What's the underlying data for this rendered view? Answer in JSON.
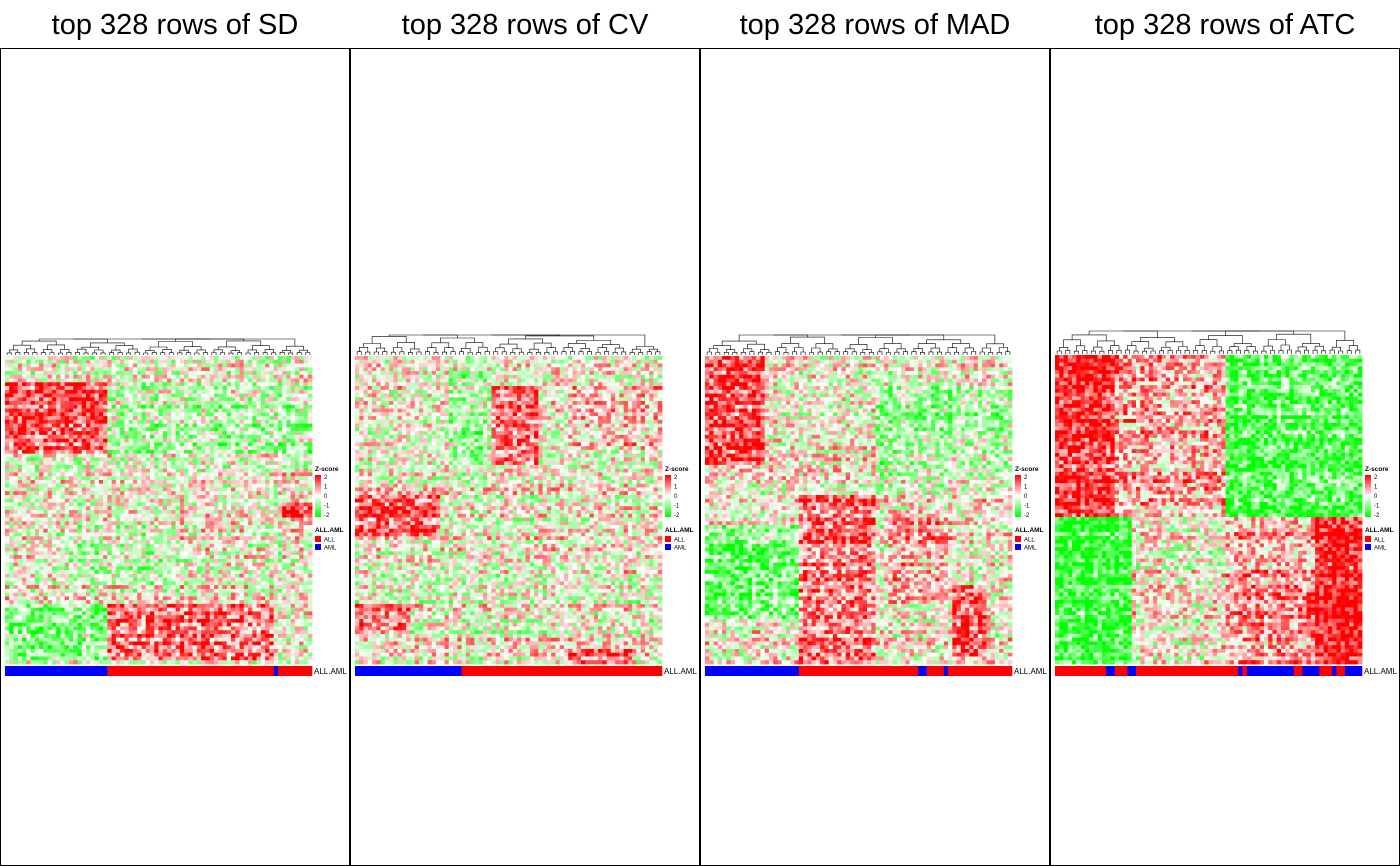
{
  "chart_data": [
    {
      "type": "heatmap",
      "title": "top 328 rows of SD",
      "annotation_track_label": "ALL.AML",
      "legend": {
        "zscore_title": "Z-score",
        "zscore_ticks": [
          "2",
          "1",
          "0",
          "-1",
          "-2"
        ],
        "zscore_colors": [
          "#ff0000",
          "#ffffff",
          "#00ff00"
        ],
        "group_title": "ALL.AML",
        "groups": [
          {
            "label": "ALL",
            "color": "#ff0000"
          },
          {
            "label": "AML",
            "color": "#0000ff"
          }
        ]
      },
      "columns": 72,
      "rows": 328,
      "annotation_segments": [
        {
          "group": "AML",
          "count": 24
        },
        {
          "group": "ALL",
          "count": 39
        },
        {
          "group": "AML",
          "count": 1
        },
        {
          "group": "ALL",
          "count": 8
        }
      ]
    },
    {
      "type": "heatmap",
      "title": "top 328 rows of CV",
      "annotation_track_label": "ALL.AML",
      "legend": {
        "zscore_title": "Z-score",
        "zscore_ticks": [
          "2",
          "1",
          "0",
          "-1",
          "-2"
        ],
        "zscore_colors": [
          "#ff0000",
          "#ffffff",
          "#00ff00"
        ],
        "group_title": "ALL.AML",
        "groups": [
          {
            "label": "ALL",
            "color": "#ff0000"
          },
          {
            "label": "AML",
            "color": "#0000ff"
          }
        ]
      },
      "columns": 72,
      "rows": 328,
      "annotation_segments": [
        {
          "group": "AML",
          "count": 25
        },
        {
          "group": "ALL",
          "count": 47
        }
      ]
    },
    {
      "type": "heatmap",
      "title": "top 328 rows of MAD",
      "annotation_track_label": "ALL.AML",
      "legend": {
        "zscore_title": "Z-score",
        "zscore_ticks": [
          "2",
          "1",
          "0",
          "-1",
          "-2"
        ],
        "zscore_colors": [
          "#ff0000",
          "#ffffff",
          "#00ff00"
        ],
        "group_title": "ALL.AML",
        "groups": [
          {
            "label": "ALL",
            "color": "#ff0000"
          },
          {
            "label": "AML",
            "color": "#0000ff"
          }
        ]
      },
      "columns": 72,
      "rows": 328,
      "annotation_segments": [
        {
          "group": "AML",
          "count": 22
        },
        {
          "group": "ALL",
          "count": 28
        },
        {
          "group": "AML",
          "count": 2
        },
        {
          "group": "ALL",
          "count": 4
        },
        {
          "group": "AML",
          "count": 1
        },
        {
          "group": "ALL",
          "count": 15
        }
      ]
    },
    {
      "type": "heatmap",
      "title": "top 328 rows of ATC",
      "annotation_track_label": "ALL.AML",
      "legend": {
        "zscore_title": "Z-score",
        "zscore_ticks": [
          "2",
          "1",
          "0",
          "-1",
          "-2"
        ],
        "zscore_colors": [
          "#ff0000",
          "#ffffff",
          "#00ff00"
        ],
        "group_title": "ALL.AML",
        "groups": [
          {
            "label": "ALL",
            "color": "#ff0000"
          },
          {
            "label": "AML",
            "color": "#0000ff"
          }
        ]
      },
      "columns": 72,
      "rows": 328,
      "annotation_segments": [
        {
          "group": "ALL",
          "count": 12
        },
        {
          "group": "AML",
          "count": 2
        },
        {
          "group": "ALL",
          "count": 3
        },
        {
          "group": "AML",
          "count": 2
        },
        {
          "group": "ALL",
          "count": 24
        },
        {
          "group": "AML",
          "count": 1
        },
        {
          "group": "ALL",
          "count": 1
        },
        {
          "group": "AML",
          "count": 11
        },
        {
          "group": "ALL",
          "count": 2
        },
        {
          "group": "AML",
          "count": 4
        },
        {
          "group": "ALL",
          "count": 3
        },
        {
          "group": "AML",
          "count": 1
        },
        {
          "group": "ALL",
          "count": 2
        },
        {
          "group": "AML",
          "count": 4
        }
      ]
    }
  ]
}
